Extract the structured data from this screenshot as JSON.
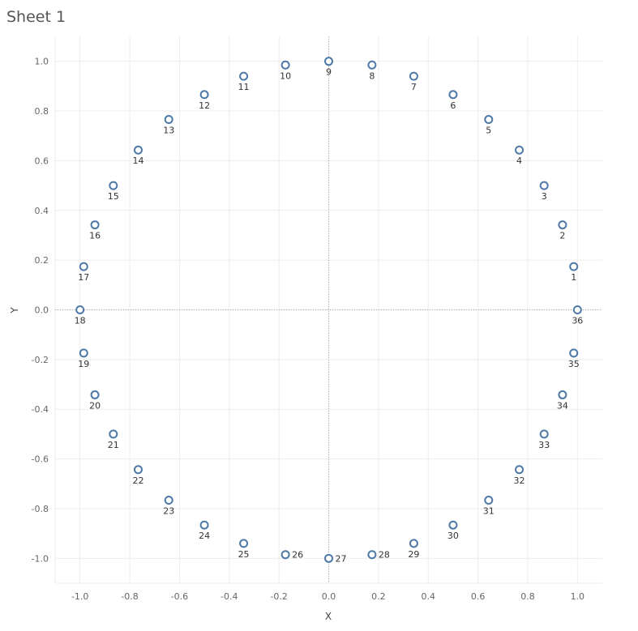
{
  "sheet": {
    "title": "Sheet 1"
  },
  "colors": {
    "marker": "#4e79a7",
    "grid": "#ececec",
    "zero_line": "#aaaaaa",
    "tick": "#666666"
  },
  "chart_data": {
    "type": "scatter",
    "xlabel": "X",
    "ylabel": "Y",
    "xlim": [
      -1.1,
      1.1
    ],
    "ylim": [
      -1.1,
      1.1
    ],
    "xticks": [
      -1.0,
      -0.8,
      -0.6,
      -0.4,
      -0.2,
      0.0,
      0.2,
      0.4,
      0.6,
      0.8,
      1.0
    ],
    "yticks": [
      -1.0,
      -0.8,
      -0.6,
      -0.4,
      -0.2,
      0.0,
      0.2,
      0.4,
      0.6,
      0.8,
      1.0
    ],
    "xtick_labels": [
      "-1.0",
      "-0.8",
      "-0.6",
      "-0.4",
      "-0.2",
      "0.0",
      "0.2",
      "0.4",
      "0.6",
      "0.8",
      "1.0"
    ],
    "ytick_labels": [
      "-1.0",
      "-0.8",
      "-0.6",
      "-0.4",
      "-0.2",
      "0.0",
      "0.2",
      "0.4",
      "0.6",
      "0.8",
      "1.0"
    ],
    "grid": true,
    "points": [
      {
        "label": "1",
        "x": 0.985,
        "y": 0.174
      },
      {
        "label": "2",
        "x": 0.94,
        "y": 0.342
      },
      {
        "label": "3",
        "x": 0.866,
        "y": 0.5
      },
      {
        "label": "4",
        "x": 0.766,
        "y": 0.643
      },
      {
        "label": "5",
        "x": 0.643,
        "y": 0.766
      },
      {
        "label": "6",
        "x": 0.5,
        "y": 0.866
      },
      {
        "label": "7",
        "x": 0.342,
        "y": 0.94
      },
      {
        "label": "8",
        "x": 0.174,
        "y": 0.985
      },
      {
        "label": "9",
        "x": 0.0,
        "y": 1.0
      },
      {
        "label": "10",
        "x": -0.174,
        "y": 0.985
      },
      {
        "label": "11",
        "x": -0.342,
        "y": 0.94
      },
      {
        "label": "12",
        "x": -0.5,
        "y": 0.866
      },
      {
        "label": "13",
        "x": -0.643,
        "y": 0.766
      },
      {
        "label": "14",
        "x": -0.766,
        "y": 0.643
      },
      {
        "label": "15",
        "x": -0.866,
        "y": 0.5
      },
      {
        "label": "16",
        "x": -0.94,
        "y": 0.342
      },
      {
        "label": "17",
        "x": -0.985,
        "y": 0.174
      },
      {
        "label": "18",
        "x": -1.0,
        "y": 0.0
      },
      {
        "label": "19",
        "x": -0.985,
        "y": -0.174
      },
      {
        "label": "20",
        "x": -0.94,
        "y": -0.342
      },
      {
        "label": "21",
        "x": -0.866,
        "y": -0.5
      },
      {
        "label": "22",
        "x": -0.766,
        "y": -0.643
      },
      {
        "label": "23",
        "x": -0.643,
        "y": -0.766
      },
      {
        "label": "24",
        "x": -0.5,
        "y": -0.866
      },
      {
        "label": "25",
        "x": -0.342,
        "y": -0.94
      },
      {
        "label": "26",
        "x": -0.174,
        "y": -0.985
      },
      {
        "label": "27",
        "x": 0.0,
        "y": -1.0
      },
      {
        "label": "28",
        "x": 0.174,
        "y": -0.985
      },
      {
        "label": "29",
        "x": 0.342,
        "y": -0.94
      },
      {
        "label": "30",
        "x": 0.5,
        "y": -0.866
      },
      {
        "label": "31",
        "x": 0.643,
        "y": -0.766
      },
      {
        "label": "32",
        "x": 0.766,
        "y": -0.643
      },
      {
        "label": "33",
        "x": 0.866,
        "y": -0.5
      },
      {
        "label": "34",
        "x": 0.94,
        "y": -0.342
      },
      {
        "label": "35",
        "x": 0.985,
        "y": -0.174
      },
      {
        "label": "36",
        "x": 1.0,
        "y": 0.0
      }
    ]
  }
}
